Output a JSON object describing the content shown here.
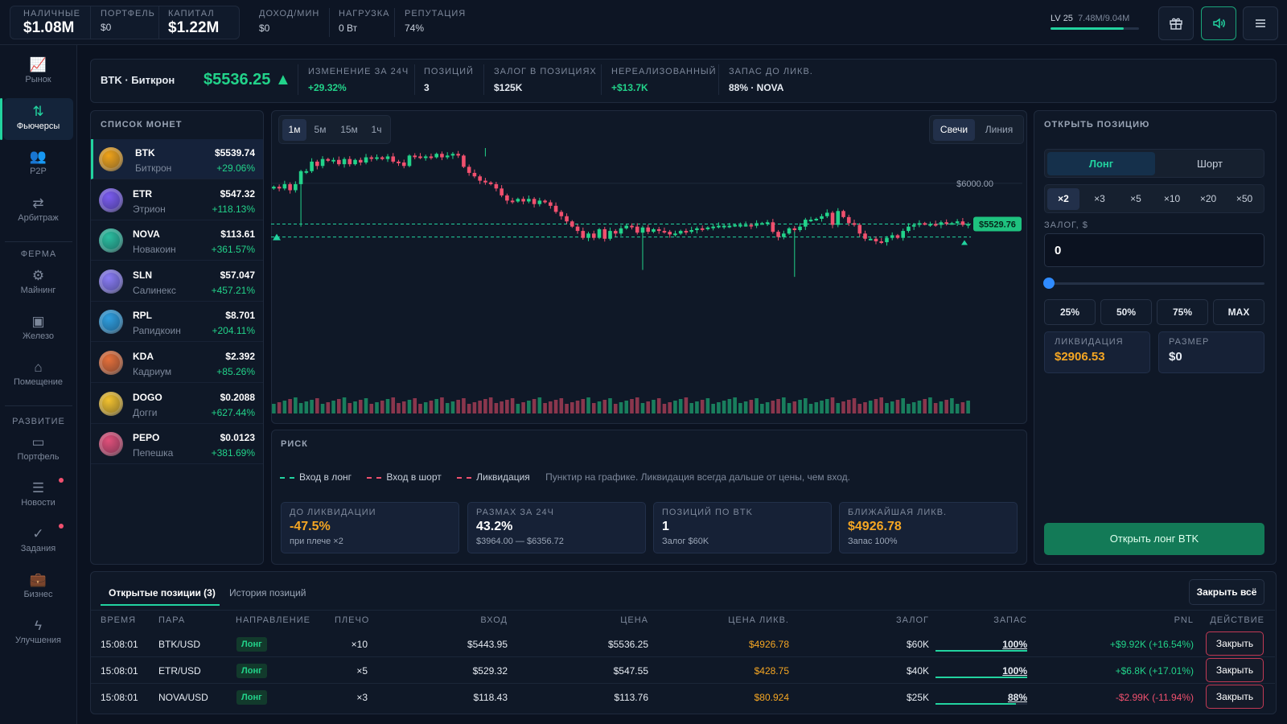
{
  "top": {
    "cash_label": "НАЛИЧНЫЕ",
    "cash": "$1.08M",
    "portfolio_label": "ПОРТФЕЛЬ",
    "portfolio": "$0",
    "capital_label": "КАПИТАЛ",
    "capital": "$1.22M",
    "income_label": "ДОХОД/МИН",
    "income": "$0",
    "load_label": "НАГРУЗКА",
    "load": "0 Вт",
    "rep_label": "РЕПУТАЦИЯ",
    "rep": "74%",
    "level": "LV 25",
    "xp": "7.48M/9.04M",
    "xp_progress": 0.83,
    "icons": [
      "gift-icon",
      "sound-icon",
      "menu-icon"
    ]
  },
  "sidebar": {
    "items": [
      {
        "label": "Рынок",
        "icon": "chart-icon"
      },
      {
        "label": "Фьючерсы",
        "icon": "futures-icon"
      },
      {
        "label": "P2P",
        "icon": "users-icon"
      },
      {
        "label": "Арбитраж",
        "icon": "swap-icon"
      },
      {
        "label": "Майнинг",
        "icon": "chip-icon"
      },
      {
        "label": "Железо",
        "icon": "hardware-icon"
      },
      {
        "label": "Помещение",
        "icon": "home-icon"
      },
      {
        "label": "Портфель",
        "icon": "wallet-icon"
      },
      {
        "label": "Новости",
        "icon": "news-icon"
      },
      {
        "label": "Задания",
        "icon": "check-icon"
      },
      {
        "label": "Бизнес",
        "icon": "briefcase-icon"
      },
      {
        "label": "Улучшения",
        "icon": "bolt-icon"
      }
    ],
    "section_farm": "ФЕРМА",
    "section_dev": "РАЗВИТИЕ"
  },
  "info": {
    "pair": "BTK · Биткрон",
    "price": "$5536.25 ▲",
    "change_label": "ИЗМЕНЕНИЕ ЗА 24Ч",
    "change": "+29.32%",
    "positions_label": "ПОЗИЦИЙ",
    "positions": "3",
    "collateral_label": "ЗАЛОГ В ПОЗИЦИЯХ",
    "collateral": "$125K",
    "unrealized_label": "НЕРЕАЛИЗОВАННЫЙ",
    "unrealized": "+$13.7K",
    "reserve_label": "ЗАПАС ДО ЛИКВ.",
    "reserve": "88% · NOVA"
  },
  "coin_list": {
    "title": "СПИСОК МОНЕТ",
    "coins": [
      {
        "sym": "BTK",
        "name": "Биткрон",
        "price": "$5539.74",
        "change": "+29.06%",
        "color": "#f0a318"
      },
      {
        "sym": "ETR",
        "name": "Этрион",
        "price": "$547.32",
        "change": "+118.13%",
        "color": "#7b5cf0"
      },
      {
        "sym": "NOVA",
        "name": "Новакоин",
        "price": "$113.61",
        "change": "+361.57%",
        "color": "#2bbfa0"
      },
      {
        "sym": "SLN",
        "name": "Салинекс",
        "price": "$57.047",
        "change": "+457.21%",
        "color": "#8a7cf5"
      },
      {
        "sym": "RPL",
        "name": "Рапидкоин",
        "price": "$8.701",
        "change": "+204.11%",
        "color": "#2f9fe0"
      },
      {
        "sym": "KDA",
        "name": "Кадриум",
        "price": "$2.392",
        "change": "+85.26%",
        "color": "#e6703a"
      },
      {
        "sym": "DOGO",
        "name": "Догги",
        "price": "$0.2088",
        "change": "+627.44%",
        "color": "#f2c12e"
      },
      {
        "sym": "PEPO",
        "name": "Пепешка",
        "price": "$0.0123",
        "change": "+381.69%",
        "color": "#e0507a"
      }
    ]
  },
  "chart": {
    "timeframes": [
      "1м",
      "5м",
      "15м",
      "1ч"
    ],
    "types": [
      "Свечи",
      "Линия"
    ],
    "level_label": "$6000.00",
    "current_label": "$5529.76"
  },
  "chart_data": {
    "type": "candlestick",
    "ylim": [
      3900,
      6500
    ],
    "grid_line": 6000,
    "long_entry": 5530,
    "short_entry": 5380,
    "closes": [
      5960,
      5940,
      5990,
      5920,
      5990,
      6140,
      6140,
      6250,
      6200,
      6280,
      6260,
      6270,
      6220,
      6280,
      6220,
      6270,
      6240,
      6300,
      6290,
      6300,
      6280,
      6310,
      6250,
      6240,
      6200,
      6320,
      6310,
      6300,
      6310,
      6300,
      6340,
      6300,
      6320,
      6340,
      6320,
      6190,
      6120,
      6080,
      6030,
      6010,
      5990,
      5940,
      5860,
      5800,
      5790,
      5820,
      5790,
      5820,
      5760,
      5800,
      5780,
      5740,
      5670,
      5620,
      5560,
      5500,
      5450,
      5370,
      5420,
      5370,
      5470,
      5360,
      5450,
      5420,
      5480,
      5510,
      5500,
      5430,
      5490,
      5440,
      5470,
      5450,
      5440,
      5410,
      5420,
      5450,
      5440,
      5460,
      5480,
      5470,
      5490,
      5500,
      5510,
      5510,
      5510,
      5520,
      5520,
      5520,
      5510,
      5540,
      5540,
      5550,
      5440,
      5380,
      5420,
      5480,
      5460,
      5500,
      5580,
      5580,
      5590,
      5620,
      5660,
      5520,
      5680,
      5610,
      5540,
      5520,
      5420,
      5360,
      5360,
      5330,
      5320,
      5370,
      5400,
      5370,
      5450,
      5500,
      5520,
      5540,
      5530,
      5530,
      5520,
      5550,
      5540,
      5540,
      5560,
      5520,
      5530
    ],
    "volume_bars": 128,
    "ylabel": ""
  },
  "risk": {
    "title": "РИСК",
    "legend_long": "Вход в лонг",
    "legend_short": "Вход в шорт",
    "legend_liq": "Ликвидация",
    "hint": "Пунктир на графике. Ликвидация всегда дальше от цены, чем вход.",
    "cards": [
      {
        "label": "ДО ЛИКВИДАЦИИ",
        "value": "-47.5%",
        "sub": "при плече ×2",
        "color": "#f5a623"
      },
      {
        "label": "РАЗМАХ ЗА 24Ч",
        "value": "43.2%",
        "sub": "$3964.00 — $6356.72",
        "color": "#ffffff"
      },
      {
        "label": "ПОЗИЦИЙ ПО BTK",
        "value": "1",
        "sub": "Залог $60K",
        "color": "#ffffff"
      },
      {
        "label": "БЛИЖАЙШАЯ ЛИКВ.",
        "value": "$4926.78",
        "sub": "Запас 100%",
        "color": "#f5a623"
      }
    ]
  },
  "order": {
    "title": "ОТКРЫТЬ ПОЗИЦИЮ",
    "long": "Лонг",
    "short": "Шорт",
    "leverages": [
      "×2",
      "×3",
      "×5",
      "×10",
      "×20",
      "×50"
    ],
    "collateral_label": "ЗАЛОГ, $",
    "collateral_value": "0",
    "slider_value": 0,
    "presets": [
      "25%",
      "50%",
      "75%",
      "MAX"
    ],
    "liq_label": "ЛИКВИДАЦИЯ",
    "liq": "$2906.53",
    "size_label": "РАЗМЕР",
    "size": "$0",
    "submit": "Открыть лонг BTK"
  },
  "positions": {
    "tab_open": "Открытые позиции (3)",
    "tab_history": "История позиций",
    "close_all": "Закрыть всё",
    "headers": [
      "ВРЕМЯ",
      "ПАРА",
      "НАПРАВЛЕНИЕ",
      "ПЛЕЧО",
      "ВХОД",
      "ЦЕНА",
      "ЦЕНА ЛИКВ.",
      "ЗАЛОГ",
      "ЗАПАС",
      "PNL",
      "ДЕЙСТВИЕ"
    ],
    "rows": [
      {
        "time": "15:08:01",
        "pair": "BTK/USD",
        "dir": "Лонг",
        "lev": "×10",
        "entry": "$5443.95",
        "price": "$5536.25",
        "liq": "$4926.78",
        "coll": "$60K",
        "reserve": "100%",
        "reserve_frac": 1.0,
        "pnl": "+$9.92K (+16.54%)",
        "pnl_pos": true,
        "action": "Закрыть"
      },
      {
        "time": "15:08:01",
        "pair": "ETR/USD",
        "dir": "Лонг",
        "lev": "×5",
        "entry": "$529.32",
        "price": "$547.55",
        "liq": "$428.75",
        "coll": "$40K",
        "reserve": "100%",
        "reserve_frac": 1.0,
        "pnl": "+$6.8K (+17.01%)",
        "pnl_pos": true,
        "action": "Закрыть"
      },
      {
        "time": "15:08:01",
        "pair": "NOVA/USD",
        "dir": "Лонг",
        "lev": "×3",
        "entry": "$118.43",
        "price": "$113.76",
        "liq": "$80.924",
        "coll": "$25K",
        "reserve": "88%",
        "reserve_frac": 0.88,
        "pnl": "-$2.99K (-11.94%)",
        "pnl_pos": false,
        "action": "Закрыть"
      }
    ]
  }
}
